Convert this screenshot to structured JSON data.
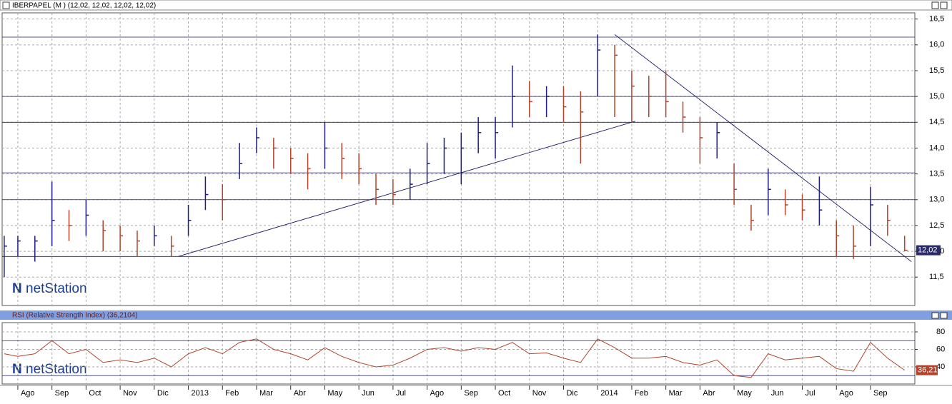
{
  "chart_data": {
    "type": "hlc",
    "title": "IBERPAPEL (M ) (12,02, 12,02, 12,02, 12,02)",
    "logo": "netStation",
    "x": [
      -0.4,
      0,
      0.5,
      1,
      1.5,
      2,
      2.5,
      3,
      3.5,
      4,
      4.5,
      5,
      5.5,
      6,
      6.5,
      7,
      7.5,
      8,
      8.5,
      9,
      9.5,
      10,
      10.5,
      11,
      11.5,
      12,
      12.5,
      13,
      13.5,
      14,
      14.5,
      15,
      15.5,
      16,
      16.5,
      17,
      17.5,
      18,
      18.5,
      19,
      19.5,
      20,
      20.5,
      21,
      21.5,
      22,
      22.5,
      23,
      23.5,
      24,
      24.5,
      25,
      25.5,
      26
    ],
    "xlim": [
      -0.46,
      26.3
    ],
    "xticks": [
      {
        "value": 0,
        "label": "Ago"
      },
      {
        "value": 1,
        "label": "Sep"
      },
      {
        "value": 2,
        "label": "Oct"
      },
      {
        "value": 3,
        "label": "Nov"
      },
      {
        "value": 4,
        "label": "Dic"
      },
      {
        "value": 5,
        "label": "2013"
      },
      {
        "value": 6,
        "label": "Feb"
      },
      {
        "value": 7,
        "label": "Mar"
      },
      {
        "value": 8,
        "label": "Abr"
      },
      {
        "value": 9,
        "label": "May"
      },
      {
        "value": 10,
        "label": "Jun"
      },
      {
        "value": 11,
        "label": "Jul"
      },
      {
        "value": 12,
        "label": "Ago"
      },
      {
        "value": 13,
        "label": "Sep"
      },
      {
        "value": 14,
        "label": "Oct"
      },
      {
        "value": 15,
        "label": "Nov"
      },
      {
        "value": 16,
        "label": "Dic"
      },
      {
        "value": 17,
        "label": "2014"
      },
      {
        "value": 18,
        "label": "Feb"
      },
      {
        "value": 19,
        "label": "Mar"
      },
      {
        "value": 20,
        "label": "Abr"
      },
      {
        "value": 21,
        "label": "May"
      },
      {
        "value": 22,
        "label": "Jun"
      },
      {
        "value": 23,
        "label": "Jul"
      },
      {
        "value": 24,
        "label": "Ago"
      },
      {
        "value": 25,
        "label": "Sep"
      }
    ],
    "high": [
      12.3,
      12.3,
      12.3,
      13.35,
      12.8,
      13.0,
      12.6,
      12.5,
      12.4,
      12.5,
      12.3,
      12.9,
      13.45,
      13.3,
      14.1,
      14.4,
      14.2,
      14.0,
      13.9,
      14.5,
      14.1,
      13.9,
      13.5,
      13.4,
      13.6,
      14.1,
      14.2,
      14.3,
      14.6,
      14.6,
      15.6,
      15.3,
      15.2,
      15.2,
      15.1,
      16.2,
      16.0,
      15.5,
      15.4,
      15.5,
      14.9,
      14.6,
      14.5,
      13.7,
      12.9,
      13.6,
      13.2,
      13.1,
      13.45,
      12.6,
      12.5,
      13.25,
      12.9,
      12.3
    ],
    "low": [
      11.5,
      11.9,
      11.8,
      12.1,
      12.2,
      12.3,
      12.0,
      12.0,
      11.9,
      12.1,
      11.9,
      12.3,
      12.8,
      12.6,
      13.4,
      13.9,
      13.6,
      13.5,
      13.2,
      13.6,
      13.4,
      13.3,
      12.9,
      12.9,
      13.0,
      13.3,
      13.5,
      13.3,
      13.9,
      13.8,
      14.4,
      14.6,
      14.6,
      14.5,
      13.7,
      15.0,
      14.6,
      14.5,
      14.6,
      14.6,
      14.3,
      13.7,
      13.8,
      12.9,
      12.4,
      12.7,
      12.7,
      12.6,
      12.5,
      11.9,
      11.85,
      12.1,
      12.3,
      12.0
    ],
    "close": [
      12.1,
      12.2,
      12.2,
      12.6,
      12.5,
      12.7,
      12.4,
      12.3,
      12.2,
      12.3,
      12.1,
      12.6,
      13.1,
      13.0,
      13.7,
      14.2,
      14.0,
      13.8,
      13.6,
      14.0,
      13.8,
      13.6,
      13.2,
      13.1,
      13.3,
      13.7,
      14.0,
      14.0,
      14.3,
      14.3,
      15.0,
      14.9,
      15.0,
      14.8,
      14.7,
      15.9,
      15.8,
      15.2,
      15.0,
      14.9,
      14.6,
      14.2,
      14.3,
      13.2,
      12.6,
      13.2,
      12.9,
      12.8,
      12.8,
      12.3,
      12.1,
      12.9,
      12.6,
      12.02
    ],
    "last_label": "12,02",
    "up_color": "#1c1c8a",
    "down_color": "#b3432b",
    "ylim": [
      10.95,
      16.62
    ],
    "yticks": [
      {
        "value": 11.5,
        "label": "11,5"
      },
      {
        "value": 12,
        "label": "12,0"
      },
      {
        "value": 12.5,
        "label": "12,5"
      },
      {
        "value": 13,
        "label": "13,0"
      },
      {
        "value": 13.5,
        "label": "13,5"
      },
      {
        "value": 14,
        "label": "14,0"
      },
      {
        "value": 14.5,
        "label": "14,5"
      },
      {
        "value": 15,
        "label": "15,0"
      },
      {
        "value": 15.5,
        "label": "15,5"
      },
      {
        "value": 16,
        "label": "16,0"
      },
      {
        "value": 16.5,
        "label": "16,5"
      }
    ],
    "hlines": [
      16.15,
      15.0,
      14.5,
      13.52,
      13.0,
      11.9
    ],
    "trendlines": [
      {
        "from": [
          4.7,
          11.9
        ],
        "to": [
          18.1,
          14.52
        ]
      },
      {
        "from": [
          17.5,
          16.2
        ],
        "to": [
          26.2,
          11.8
        ]
      }
    ],
    "grid": true,
    "rsi": {
      "title": "RSI (Relative Strength Index) (36,2104)",
      "color": "#b3432b",
      "values": [
        55,
        52,
        55,
        70,
        55,
        60,
        45,
        48,
        45,
        50,
        40,
        55,
        62,
        55,
        68,
        72,
        60,
        55,
        48,
        62,
        52,
        45,
        40,
        42,
        50,
        60,
        62,
        58,
        62,
        60,
        68,
        55,
        56,
        50,
        45,
        72,
        62,
        50,
        50,
        52,
        45,
        42,
        48,
        30,
        28,
        55,
        48,
        50,
        52,
        38,
        35,
        68,
        50,
        36.21
      ],
      "last_label": "36,21",
      "ylim": [
        20.4,
        90.6
      ],
      "yticks": [
        40,
        60,
        80
      ],
      "hlines": [
        70,
        30
      ]
    }
  }
}
